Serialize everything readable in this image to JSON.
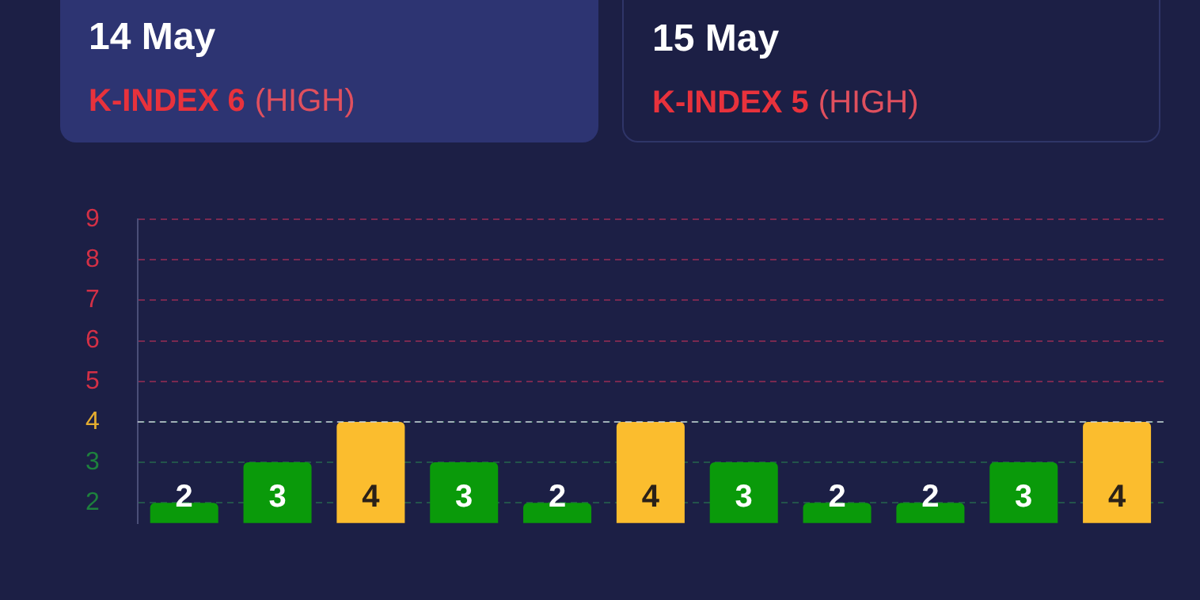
{
  "chart_data": [
    {
      "type": "other",
      "title": "14 May",
      "annotations": [
        "K-INDEX 6",
        "(HIGH)"
      ]
    },
    {
      "type": "other",
      "title": "15 May",
      "annotations": [
        "K-INDEX 5",
        "(HIGH)"
      ]
    },
    {
      "type": "bar",
      "categories": [
        null,
        null,
        null,
        null,
        null,
        null,
        null,
        null,
        null,
        null,
        null
      ],
      "values": [
        2,
        3,
        4,
        3,
        2,
        4,
        3,
        2,
        2,
        3,
        4
      ],
      "data_labels": true,
      "colors": [
        "#0a9a0a",
        "#0a9a0a",
        "#fbbd2e",
        "#0a9a0a",
        "#0a9a0a",
        "#fbbd2e",
        "#0a9a0a",
        "#0a9a0a",
        "#0a9a0a",
        "#0a9a0a",
        "#fbbd2e"
      ],
      "ylim": [
        1.5,
        9
      ],
      "yticks": [
        2,
        3,
        4,
        5,
        6,
        7,
        8,
        9
      ],
      "ref_lines": [
        {
          "axis": "y",
          "value": 4,
          "color": "#d7d7e6",
          "line_style": "dashed"
        }
      ],
      "grid": "y",
      "legend": false,
      "tick_labels": "y"
    }
  ]
}
